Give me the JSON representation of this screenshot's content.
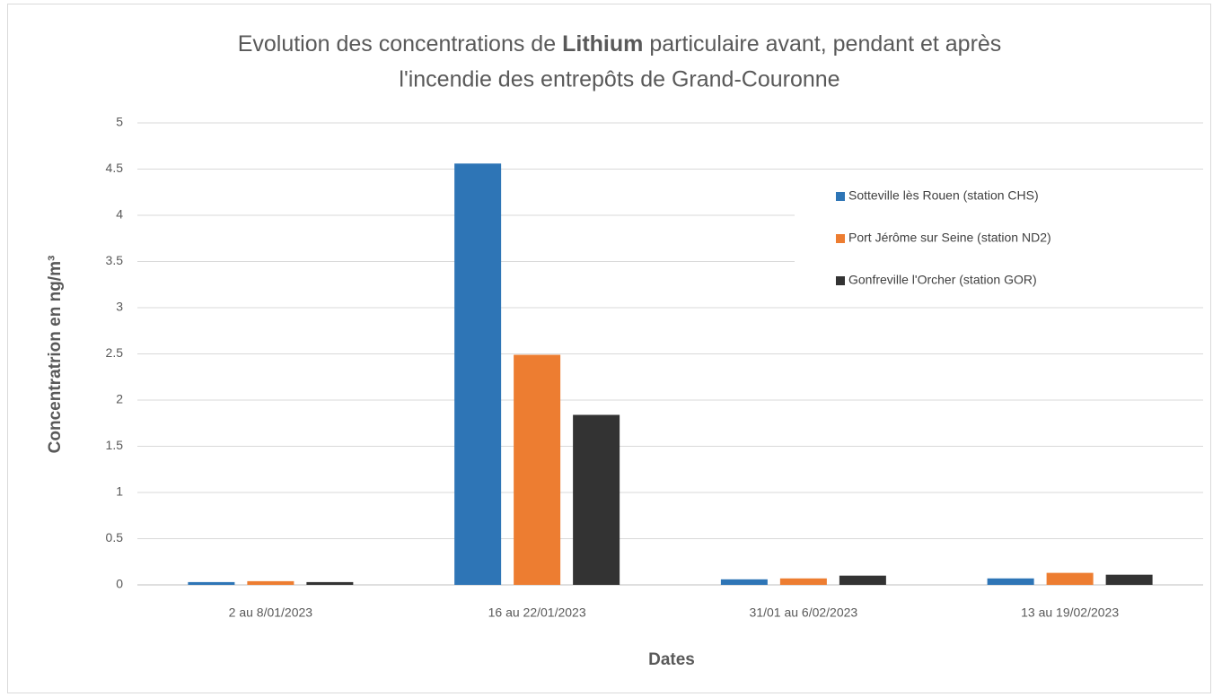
{
  "chart_data": {
    "type": "bar",
    "title": {
      "line1": [
        "Evolution des concentrations de",
        "Lithium",
        "particulaire avant, pendant et après"
      ],
      "line2": "l'incendie des entrepôts de Grand-Couronne"
    },
    "x_label": "Dates",
    "y_label": "Concentratrion en ng/m³",
    "categories": [
      "2 au 8/01/2023",
      "16 au 22/01/2023",
      "31/01 au 6/02/2023",
      "13 au 19/02/2023"
    ],
    "series": [
      {
        "name": "Sotteville lès Rouen (station CHS)",
        "color": "#2e75b6",
        "values": [
          0.03,
          4.56,
          0.06,
          0.07
        ]
      },
      {
        "name": "Port Jérôme sur Seine (station ND2)",
        "color": "#ed7d31",
        "values": [
          0.04,
          2.49,
          0.07,
          0.13
        ]
      },
      {
        "name": "Gonfreville l'Orcher (station GOR)",
        "color": "#333333",
        "values": [
          0.03,
          1.84,
          0.1,
          0.11
        ]
      }
    ],
    "ylim": [
      0,
      5
    ],
    "yticks": [
      0,
      0.5,
      1,
      1.5,
      2,
      2.5,
      3,
      3.5,
      4,
      4.5,
      5
    ],
    "grid": true,
    "legend": "right"
  }
}
